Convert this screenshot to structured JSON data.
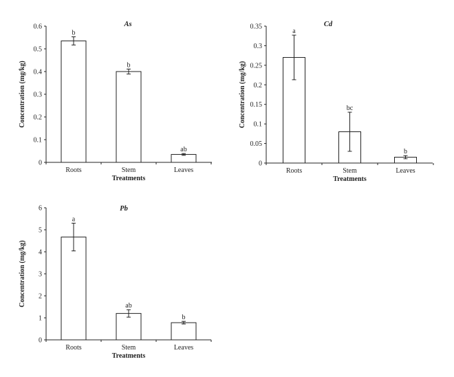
{
  "chart_data": [
    {
      "type": "bar",
      "title": "As",
      "xlabel": "Treatments",
      "ylabel": "Concentration (mg/kg)",
      "categories": [
        "Roots",
        "Stem",
        "Leaves"
      ],
      "values": [
        0.535,
        0.4,
        0.035
      ],
      "errors": [
        0.018,
        0.011,
        0.004
      ],
      "labels": [
        "b",
        "b",
        "ab"
      ],
      "ylim": [
        0,
        0.6
      ],
      "yticks": [
        "0",
        "0.1",
        "0.2",
        "0.3",
        "0.4",
        "0.5",
        "0.6"
      ]
    },
    {
      "type": "bar",
      "title": "Cd",
      "xlabel": "Treatments",
      "ylabel": "Concentration (mg/kg)",
      "categories": [
        "Roots",
        "Stem",
        "Leaves"
      ],
      "values": [
        0.27,
        0.08,
        0.015
      ],
      "errors": [
        0.057,
        0.05,
        0.004
      ],
      "labels": [
        "a",
        "bc",
        "b"
      ],
      "ylim": [
        0,
        0.35
      ],
      "yticks": [
        "0",
        "0.05",
        "0.1",
        "0.15",
        "0.2",
        "0.25",
        "0.3",
        "0.35"
      ]
    },
    {
      "type": "bar",
      "title": "Pb",
      "xlabel": "Treatments",
      "ylabel": "Concentration (mg/kg)",
      "categories": [
        "Roots",
        "Stem",
        "Leaves"
      ],
      "values": [
        4.67,
        1.2,
        0.78
      ],
      "errors": [
        0.63,
        0.17,
        0.06
      ],
      "labels": [
        "a",
        "ab",
        "b"
      ],
      "ylim": [
        0,
        6
      ],
      "yticks": [
        "0",
        "1",
        "2",
        "3",
        "4",
        "5",
        "6"
      ]
    }
  ]
}
